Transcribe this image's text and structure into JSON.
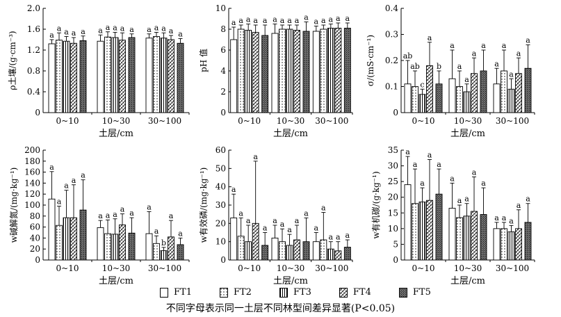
{
  "caption": "不同字母表示同一土层不同林型间差异显著(P<0.05)",
  "legend": [
    {
      "label": "FT1",
      "pattern": "blank"
    },
    {
      "label": "FT2",
      "pattern": "dots"
    },
    {
      "label": "FT3",
      "pattern": "vlines"
    },
    {
      "label": "FT4",
      "pattern": "diag"
    },
    {
      "label": "FT5",
      "pattern": "dense"
    }
  ],
  "chart_data": [
    {
      "type": "bar",
      "ylabel": "ρ土壤/(g·cm⁻³)",
      "xlabel": "土层/cm",
      "categories": [
        "0~10",
        "10~30",
        "30~100"
      ],
      "ylim": [
        0,
        2.0
      ],
      "yticks": [
        "0",
        "0.4",
        "0.8",
        "1.2",
        "1.6",
        "2.0"
      ],
      "series": [
        {
          "name": "FT1",
          "values": [
            1.32,
            1.37,
            1.43
          ],
          "errors": [
            0.08,
            0.12,
            0.08
          ]
        },
        {
          "name": "FT2",
          "values": [
            1.39,
            1.45,
            1.46
          ],
          "errors": [
            0.14,
            0.1,
            0.08
          ]
        },
        {
          "name": "FT3",
          "values": [
            1.37,
            1.44,
            1.43
          ],
          "errors": [
            0.09,
            0.1,
            0.1
          ]
        },
        {
          "name": "FT4",
          "values": [
            1.33,
            1.39,
            1.4
          ],
          "errors": [
            0.11,
            0.14,
            0.08
          ]
        },
        {
          "name": "FT5",
          "values": [
            1.38,
            1.44,
            1.33
          ],
          "errors": [
            0.09,
            0.07,
            0.09
          ]
        }
      ],
      "letters": [
        [
          "a",
          "a",
          "a",
          "a",
          "a"
        ],
        [
          "a",
          "a",
          "a",
          "a",
          "a"
        ],
        [
          "a",
          "a",
          "a",
          "a",
          "a"
        ]
      ]
    },
    {
      "type": "bar",
      "ylabel": "pH 值",
      "xlabel": "土层/cm",
      "categories": [
        "0~10",
        "10~30",
        "30~100"
      ],
      "ylim": [
        0,
        10
      ],
      "yticks": [
        "0",
        "2",
        "4",
        "6",
        "8",
        "10"
      ],
      "series": [
        {
          "name": "FT1",
          "values": [
            7.0,
            7.6,
            7.8
          ],
          "errors": [
            1.2,
            0.9,
            0.5
          ]
        },
        {
          "name": "FT2",
          "values": [
            8.0,
            8.0,
            8.0
          ],
          "errors": [
            0.4,
            0.4,
            0.4
          ]
        },
        {
          "name": "FT3",
          "values": [
            7.9,
            8.0,
            8.1
          ],
          "errors": [
            0.6,
            0.4,
            0.4
          ]
        },
        {
          "name": "FT4",
          "values": [
            7.7,
            7.9,
            8.1
          ],
          "errors": [
            0.7,
            0.5,
            0.5
          ]
        },
        {
          "name": "FT5",
          "values": [
            7.4,
            7.8,
            8.1
          ],
          "errors": [
            1.0,
            0.9,
            0.5
          ]
        }
      ],
      "letters": [
        [
          "a",
          "a",
          "a",
          "a",
          "a"
        ],
        [
          "a",
          "a",
          "a",
          "a",
          "a"
        ],
        [
          "a",
          "a",
          "a",
          "a",
          "a"
        ]
      ]
    },
    {
      "type": "bar",
      "ylabel": "σ/(mS·cm⁻¹)",
      "xlabel": "土层/cm",
      "categories": [
        "0~10",
        "10~30",
        "30~100"
      ],
      "ylim": [
        0,
        0.4
      ],
      "yticks": [
        "0",
        "0.1",
        "0.2",
        "0.3",
        "0.4"
      ],
      "series": [
        {
          "name": "FT1",
          "values": [
            0.11,
            0.13,
            0.11
          ],
          "errors": [
            0.09,
            0.11,
            0.06
          ]
        },
        {
          "name": "FT2",
          "values": [
            0.1,
            0.1,
            0.16
          ],
          "errors": [
            0.06,
            0.06,
            0.08
          ]
        },
        {
          "name": "FT3",
          "values": [
            0.07,
            0.08,
            0.09
          ],
          "errors": [
            0.02,
            0.03,
            0.04
          ]
        },
        {
          "name": "FT4",
          "values": [
            0.18,
            0.15,
            0.15
          ],
          "errors": [
            0.09,
            0.06,
            0.06
          ]
        },
        {
          "name": "FT5",
          "values": [
            0.11,
            0.16,
            0.17
          ],
          "errors": [
            0.05,
            0.08,
            0.09
          ]
        }
      ],
      "letters": [
        [
          "ab",
          "ab",
          "c",
          "a",
          "b"
        ],
        [
          "a",
          "a",
          "a",
          "a",
          "a"
        ],
        [
          "a",
          "a",
          "a",
          "a",
          "a"
        ]
      ]
    },
    {
      "type": "bar",
      "ylabel": "w碱解氮/(mg·kg⁻¹)",
      "xlabel": "土层/cm",
      "categories": [
        "0~10",
        "10~30",
        "30~100"
      ],
      "ylim": [
        0,
        200
      ],
      "yticks": [
        "0",
        "20",
        "40",
        "60",
        "80",
        "100",
        "120",
        "140",
        "160",
        "180",
        "200"
      ],
      "series": [
        {
          "name": "FT1",
          "values": [
            111,
            59,
            48
          ],
          "errors": [
            50,
            13,
            40
          ]
        },
        {
          "name": "FT2",
          "values": [
            63,
            48,
            30
          ],
          "errors": [
            35,
            25,
            14
          ]
        },
        {
          "name": "FT3",
          "values": [
            77,
            47,
            17
          ],
          "errors": [
            50,
            28,
            6
          ]
        },
        {
          "name": "FT4",
          "values": [
            77,
            64,
            42
          ],
          "errors": [
            60,
            20,
            30
          ]
        },
        {
          "name": "FT5",
          "values": [
            91,
            49,
            28
          ],
          "errors": [
            55,
            28,
            12
          ]
        }
      ],
      "letters": [
        [
          "a",
          "a",
          "a",
          "a",
          "a"
        ],
        [
          "a",
          "a",
          "a",
          "a",
          "a"
        ],
        [
          "a",
          "a",
          "b",
          "a",
          "a"
        ]
      ]
    },
    {
      "type": "bar",
      "ylabel": "w有效磷/(mg·kg⁻¹)",
      "xlabel": "土层/cm",
      "categories": [
        "0~10",
        "10~30",
        "30~100"
      ],
      "ylim": [
        0,
        60
      ],
      "yticks": [
        "0",
        "10",
        "20",
        "30",
        "40",
        "50",
        "60"
      ],
      "series": [
        {
          "name": "FT1",
          "values": [
            23,
            12,
            10
          ],
          "errors": [
            13,
            7,
            5
          ]
        },
        {
          "name": "FT2",
          "values": [
            13,
            10,
            11
          ],
          "errors": [
            10,
            7,
            15
          ]
        },
        {
          "name": "FT3",
          "values": [
            10,
            8,
            6
          ],
          "errors": [
            9,
            6,
            4
          ]
        },
        {
          "name": "FT4",
          "values": [
            20,
            11,
            5
          ],
          "errors": [
            34,
            8,
            5
          ]
        },
        {
          "name": "FT5",
          "values": [
            8,
            10,
            7
          ],
          "errors": [
            7,
            13,
            4
          ]
        }
      ],
      "letters": [
        [
          "a",
          "a",
          "a",
          "a",
          "a"
        ],
        [
          "a",
          "a",
          "a",
          "a",
          "a"
        ],
        [
          "a",
          "a",
          "a",
          "a",
          "a"
        ]
      ]
    },
    {
      "type": "bar",
      "ylabel": "w有机碳/(g·kg⁻¹)",
      "xlabel": "土层/cm",
      "categories": [
        "0~10",
        "10~30",
        "30~100"
      ],
      "ylim": [
        0,
        35
      ],
      "yticks": [
        "0",
        "5",
        "10",
        "15",
        "20",
        "25",
        "30",
        "35"
      ],
      "series": [
        {
          "name": "FT1",
          "values": [
            24,
            16.5,
            10
          ],
          "errors": [
            9,
            8,
            2
          ]
        },
        {
          "name": "FT2",
          "values": [
            18,
            13.5,
            10
          ],
          "errors": [
            11,
            4,
            2
          ]
        },
        {
          "name": "FT3",
          "values": [
            18.5,
            14,
            9
          ],
          "errors": [
            4.5,
            4,
            2
          ]
        },
        {
          "name": "FT4",
          "values": [
            19,
            15.5,
            10
          ],
          "errors": [
            13,
            11,
            6
          ]
        },
        {
          "name": "FT5",
          "values": [
            21,
            14.5,
            12
          ],
          "errors": [
            8,
            8.5,
            6
          ]
        }
      ],
      "letters": [
        [
          "a",
          "a",
          "a",
          "a",
          "a"
        ],
        [
          "a",
          "a",
          "a",
          "a",
          "a"
        ],
        [
          "a",
          "a",
          "a",
          "a",
          "a"
        ]
      ]
    }
  ]
}
